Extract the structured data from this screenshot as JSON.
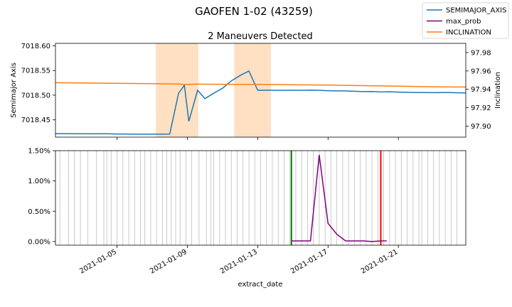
{
  "figure": {
    "suptitle": "GAOFEN 1-02 (43259)"
  },
  "legend": {
    "placement": "top-right",
    "items": [
      {
        "label": "SEMIMAJOR_AXIS",
        "color": "#1f77b4"
      },
      {
        "label": "max_prob",
        "color": "#800080"
      },
      {
        "label": "INCLINATION",
        "color": "#ff7f0e"
      }
    ]
  },
  "chart_data": [
    {
      "type": "line",
      "title": "2 Maneuvers Detected",
      "xlabel": "",
      "ylabel": "Semimajor Axis",
      "ylabel_right": "Inclination",
      "xlim": [
        "2021-01-01 12:00",
        "2021-01-24 20:00"
      ],
      "ylim": [
        7018.415,
        7018.605
      ],
      "ylim_right": [
        97.888,
        97.99
      ],
      "yticks": [
        "7018.45",
        "7018.50",
        "7018.55",
        "7018.60"
      ],
      "yticks_right": [
        "97.90",
        "97.92",
        "97.94",
        "97.96",
        "97.98"
      ],
      "grid": false,
      "shaded_intervals": [
        {
          "start": "2021-01-07 05:00",
          "end": "2021-01-09 15:00",
          "color": "#ffdab9"
        },
        {
          "start": "2021-01-11 16:00",
          "end": "2021-01-13 18:00",
          "color": "#ffdab9"
        }
      ],
      "series": [
        {
          "name": "SEMIMAJOR_AXIS",
          "color": "#1f77b4",
          "axis": "left",
          "points": [
            [
              "2021-01-01 12:00",
              7018.4222
            ],
            [
              "2021-01-02 00:00",
              7018.4221
            ],
            [
              "2021-01-02 12:00",
              7018.4221
            ],
            [
              "2021-01-03 00:00",
              7018.4219
            ],
            [
              "2021-01-03 12:00",
              7018.4219
            ],
            [
              "2021-01-04 00:00",
              7018.4219
            ],
            [
              "2021-01-04 12:00",
              7018.4218
            ],
            [
              "2021-01-05 00:00",
              7018.4214
            ],
            [
              "2021-01-05 12:00",
              7018.4213
            ],
            [
              "2021-01-06 00:00",
              7018.421
            ],
            [
              "2021-01-06 12:00",
              7018.4209
            ],
            [
              "2021-01-07 00:00",
              7018.4211
            ],
            [
              "2021-01-07 12:00",
              7018.4212
            ],
            [
              "2021-01-08 00:00",
              7018.4213
            ],
            [
              "2021-01-08 12:00",
              7018.504
            ],
            [
              "2021-01-08 20:00",
              7018.52
            ],
            [
              "2021-01-09 02:00",
              7018.447
            ],
            [
              "2021-01-09 14:00",
              7018.51
            ],
            [
              "2021-01-10 00:00",
              7018.493
            ],
            [
              "2021-01-10 12:00",
              7018.504
            ],
            [
              "2021-01-11 00:00",
              7018.514
            ],
            [
              "2021-01-11 12:00",
              7018.529
            ],
            [
              "2021-01-12 00:00",
              7018.54
            ],
            [
              "2021-01-12 12:00",
              7018.549
            ],
            [
              "2021-01-13 00:00",
              7018.51
            ],
            [
              "2021-01-13 12:00",
              7018.51
            ],
            [
              "2021-01-14 00:00",
              7018.5099
            ],
            [
              "2021-01-14 12:00",
              7018.5099
            ],
            [
              "2021-01-15 00:00",
              7018.51
            ],
            [
              "2021-01-15 12:00",
              7018.5098
            ],
            [
              "2021-01-16 00:00",
              7018.5102
            ],
            [
              "2021-01-16 12:00",
              7018.5099
            ],
            [
              "2021-01-17 00:00",
              7018.5092
            ],
            [
              "2021-01-17 12:00",
              7018.5087
            ],
            [
              "2021-01-18 00:00",
              7018.5085
            ],
            [
              "2021-01-18 12:00",
              7018.508
            ],
            [
              "2021-01-19 00:00",
              7018.5072
            ],
            [
              "2021-01-19 12:00",
              7018.5076
            ],
            [
              "2021-01-20 00:00",
              7018.5066
            ],
            [
              "2021-01-20 12:00",
              7018.507
            ],
            [
              "2021-01-21 00:00",
              7018.5063
            ],
            [
              "2021-01-21 12:00",
              7018.5058
            ],
            [
              "2021-01-22 00:00",
              7018.5054
            ],
            [
              "2021-01-22 12:00",
              7018.5054
            ],
            [
              "2021-01-23 00:00",
              7018.5051
            ],
            [
              "2021-01-23 12:00",
              7018.5052
            ],
            [
              "2021-01-24 00:00",
              7018.5052
            ],
            [
              "2021-01-24 20:00",
              7018.5046
            ]
          ]
        },
        {
          "name": "INCLINATION",
          "color": "#ff7f0e",
          "axis": "right",
          "points": [
            [
              "2021-01-01 12:00",
              97.9472
            ],
            [
              "2021-01-03 00:00",
              97.9469
            ],
            [
              "2021-01-05 00:00",
              97.9465
            ],
            [
              "2021-01-07 00:00",
              97.9461
            ],
            [
              "2021-01-08 12:00",
              97.9457
            ],
            [
              "2021-01-09 00:00",
              97.9452
            ],
            [
              "2021-01-09 12:00",
              97.9457
            ],
            [
              "2021-01-10 00:00",
              97.9456
            ],
            [
              "2021-01-11 00:00",
              97.9455
            ],
            [
              "2021-01-12 00:00",
              97.9454
            ],
            [
              "2021-01-13 00:00",
              97.9454
            ],
            [
              "2021-01-15 00:00",
              97.945
            ],
            [
              "2021-01-17 00:00",
              97.9446
            ],
            [
              "2021-01-19 00:00",
              97.944
            ],
            [
              "2021-01-21 00:00",
              97.9434
            ],
            [
              "2021-01-23 00:00",
              97.9428
            ],
            [
              "2021-01-24 20:00",
              97.9425
            ]
          ]
        }
      ]
    },
    {
      "type": "line",
      "title": "",
      "xlabel": "extract_date",
      "ylabel": "",
      "xlim": [
        "2021-01-01 12:00",
        "2021-01-24 20:00"
      ],
      "ylim": [
        -0.0006,
        0.015
      ],
      "yticks": [
        "0.00%",
        "0.50%",
        "1.00%",
        "1.50%"
      ],
      "xticks": [
        "2021-01-05",
        "2021-01-09",
        "2021-01-13",
        "2021-01-17",
        "2021-01-21"
      ],
      "grid": false,
      "event_lines": [
        "2021-01-01 18:00",
        "2021-01-02 06:00",
        "2021-01-02 14:00",
        "2021-01-02 22:00",
        "2021-01-03 08:00",
        "2021-01-03 20:00",
        "2021-01-04 06:00",
        "2021-01-04 10:00",
        "2021-01-04 16:00",
        "2021-01-05 00:00",
        "2021-01-05 08:00",
        "2021-01-05 16:00",
        "2021-01-06 00:00",
        "2021-01-06 08:00",
        "2021-01-06 14:00",
        "2021-01-06 22:00",
        "2021-01-07 06:00",
        "2021-01-07 14:00",
        "2021-01-07 20:00",
        "2021-01-08 02:00",
        "2021-01-08 08:00",
        "2021-01-08 14:00",
        "2021-01-08 22:00",
        "2021-01-09 06:00",
        "2021-01-09 16:00",
        "2021-01-10 02:00",
        "2021-01-10 08:00",
        "2021-01-10 12:00",
        "2021-01-10 20:00",
        "2021-01-11 04:00",
        "2021-01-11 12:00",
        "2021-01-11 20:00",
        "2021-01-12 04:00",
        "2021-01-12 12:00",
        "2021-01-12 20:00",
        "2021-01-13 04:00",
        "2021-01-13 12:00",
        "2021-01-13 20:00",
        "2021-01-14 04:00",
        "2021-01-14 12:00",
        "2021-01-14 20:00",
        "2021-01-15 04:00",
        "2021-01-15 12:00",
        "2021-01-15 20:00",
        "2021-01-16 04:00",
        "2021-01-16 12:00",
        "2021-01-16 20:00",
        "2021-01-17 04:00",
        "2021-01-17 12:00",
        "2021-01-17 20:00",
        "2021-01-18 04:00",
        "2021-01-18 12:00",
        "2021-01-18 20:00",
        "2021-01-19 04:00",
        "2021-01-19 12:00",
        "2021-01-19 20:00",
        "2021-01-20 04:00",
        "2021-01-20 12:00",
        "2021-01-20 20:00",
        "2021-01-21 04:00",
        "2021-01-21 12:00",
        "2021-01-21 20:00",
        "2021-01-22 04:00",
        "2021-01-22 08:00",
        "2021-01-22 16:00",
        "2021-01-23 00:00",
        "2021-01-23 08:00",
        "2021-01-23 16:00",
        "2021-01-24 00:00",
        "2021-01-24 08:00"
      ],
      "markers": [
        {
          "date": "2021-01-14 22:00",
          "color": "#008000"
        },
        {
          "date": "2021-01-20 00:00",
          "color": "#ff0000"
        }
      ],
      "series": [
        {
          "name": "max_prob",
          "color": "#800080",
          "points": [
            [
              "2021-01-14 22:00",
              0.0001
            ],
            [
              "2021-01-15 12:00",
              0.0001
            ],
            [
              "2021-01-16 00:00",
              0.0001
            ],
            [
              "2021-01-16 12:00",
              0.0143
            ],
            [
              "2021-01-17 00:00",
              0.003
            ],
            [
              "2021-01-17 12:00",
              0.0012
            ],
            [
              "2021-01-18 00:00",
              0.0001
            ],
            [
              "2021-01-18 12:00",
              0.0001
            ],
            [
              "2021-01-19 00:00",
              0.0001
            ],
            [
              "2021-01-19 12:00",
              0.0
            ],
            [
              "2021-01-20 00:00",
              0.0001
            ],
            [
              "2021-01-20 08:00",
              0.0001
            ]
          ]
        }
      ]
    }
  ]
}
